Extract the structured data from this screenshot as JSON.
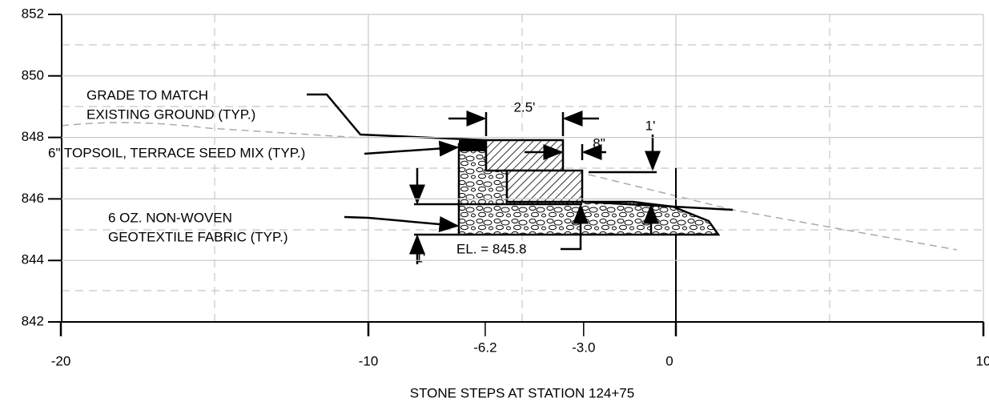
{
  "title": "STONE STEPS AT STATION 124+75",
  "yticks": [
    852,
    850,
    848,
    846,
    844,
    842
  ],
  "xticks": [
    -20,
    -10,
    0,
    10
  ],
  "station_labels": [
    -6.2,
    {
      "value": -3,
      "label": "-3.0"
    }
  ],
  "annotations": {
    "grade": [
      "GRADE TO MATCH",
      "EXISTING GROUND (TYP.)"
    ],
    "topsoil": "6\" TOPSOIL, TERRACE SEED MIX (TYP.)",
    "fabric": [
      "6 OZ. NON-WOVEN",
      "GEOTEXTILE FABRIC (TYP.)"
    ],
    "step_width": "2.5'",
    "offset": "8\"",
    "rise_right": "1'",
    "rise_left": "1'",
    "elevation": "EL. = 845.8"
  }
}
